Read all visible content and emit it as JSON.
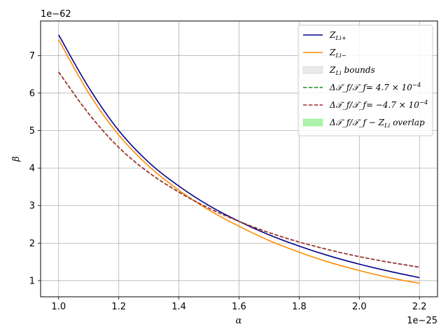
{
  "chart_data": {
    "type": "line",
    "xlabel": "α",
    "ylabel": "β",
    "x_offset_text": "1e−25",
    "y_offset_text": "1e−62",
    "xlim": [
      0.94,
      2.26
    ],
    "ylim": [
      0.57,
      7.92
    ],
    "xticks": [
      1.0,
      1.2,
      1.4,
      1.6,
      1.8,
      2.0,
      2.2
    ],
    "xtick_labels": [
      "1.0",
      "1.2",
      "1.4",
      "1.6",
      "1.8",
      "2.0",
      "2.2"
    ],
    "yticks": [
      1,
      2,
      3,
      4,
      5,
      6,
      7
    ],
    "ytick_labels": [
      "1",
      "2",
      "3",
      "4",
      "5",
      "6",
      "7"
    ],
    "grid": true,
    "legend_position": "top-right",
    "series": [
      {
        "name": "Z_{Li+}",
        "color": "#00008b",
        "style": "solid",
        "x": [
          1.0,
          1.1,
          1.2,
          1.3,
          1.4,
          1.5,
          1.6,
          1.7,
          1.8,
          1.9,
          2.0,
          2.1,
          2.2
        ],
        "y": [
          7.55,
          6.15,
          5.0,
          4.15,
          3.52,
          3.0,
          2.58,
          2.22,
          1.92,
          1.66,
          1.44,
          1.25,
          1.08
        ]
      },
      {
        "name": "Z_{Li−}",
        "color": "#ff8c00",
        "style": "solid",
        "x": [
          1.0,
          1.1,
          1.2,
          1.3,
          1.4,
          1.5,
          1.6,
          1.7,
          1.8,
          1.9,
          2.0,
          2.1,
          2.2
        ],
        "y": [
          7.42,
          6.0,
          4.88,
          4.05,
          3.41,
          2.88,
          2.45,
          2.07,
          1.76,
          1.49,
          1.27,
          1.08,
          0.93
        ]
      },
      {
        "name": "Z_{Li} bounds",
        "color": "#d3d3d3",
        "style": "fill",
        "x": [],
        "y": []
      },
      {
        "name": "Δ𝒯_f/𝒯_f= 4.7 × 10^{−4}",
        "color": "#228b22",
        "style": "dashed",
        "x": [
          1.0,
          1.1,
          1.2,
          1.3,
          1.4,
          1.5,
          1.6,
          1.7,
          1.8,
          1.9,
          2.0,
          2.1,
          2.2
        ],
        "y": [
          6.56,
          5.45,
          4.55,
          3.88,
          3.36,
          2.93,
          2.58,
          2.28,
          2.03,
          1.82,
          1.64,
          1.49,
          1.36
        ]
      },
      {
        "name": "Δ𝒯_f/𝒯_f= −4.7 × 10^{−4}",
        "color": "#a52a2a",
        "style": "dashed",
        "x": [
          1.0,
          1.1,
          1.2,
          1.3,
          1.4,
          1.5,
          1.6,
          1.7,
          1.8,
          1.9,
          2.0,
          2.1,
          2.2
        ],
        "y": [
          6.56,
          5.45,
          4.55,
          3.88,
          3.36,
          2.93,
          2.58,
          2.28,
          2.03,
          1.82,
          1.64,
          1.49,
          1.36
        ]
      },
      {
        "name": "Δ𝒯_f/𝒯_f − Z_{Li} overlap",
        "color": "#90ee90",
        "style": "fill",
        "x": [],
        "y": []
      }
    ]
  }
}
